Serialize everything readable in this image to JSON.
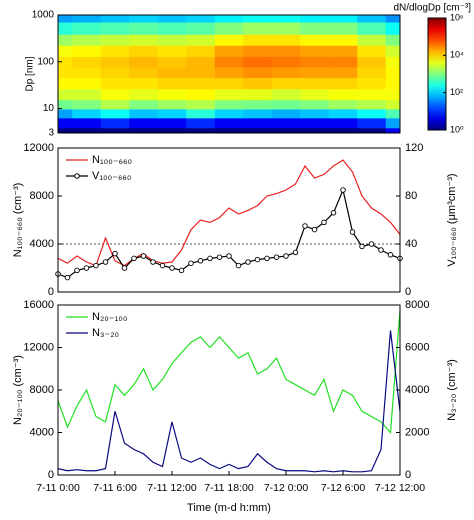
{
  "chart_data": [
    {
      "type": "heatmap",
      "x": [
        0,
        3,
        6,
        9,
        12,
        15,
        18,
        21,
        24,
        27,
        30,
        33,
        36
      ],
      "y": [
        3,
        5,
        8,
        12,
        20,
        35,
        60,
        100,
        170,
        300,
        500,
        1000
      ],
      "z": [
        [
          1,
          1,
          1,
          1,
          1,
          1,
          1,
          1,
          1,
          1,
          1,
          1,
          5
        ],
        [
          5,
          5,
          10,
          5,
          5,
          10,
          5,
          5,
          5,
          5,
          5,
          10,
          50
        ],
        [
          50,
          100,
          200,
          80,
          100,
          300,
          100,
          80,
          60,
          80,
          100,
          200,
          500
        ],
        [
          800,
          1000,
          2000,
          1000,
          1500,
          2000,
          1000,
          900,
          800,
          1000,
          1500,
          2000,
          3000
        ],
        [
          3000,
          3000,
          5000,
          4000,
          5000,
          6000,
          4000,
          4000,
          3000,
          4000,
          5000,
          5000,
          5000
        ],
        [
          6000,
          6000,
          8000,
          8000,
          10000,
          10000,
          10000,
          12000,
          10000,
          10000,
          10000,
          8000,
          6000
        ],
        [
          8000,
          8000,
          10000,
          12000,
          15000,
          15000,
          20000,
          25000,
          22000,
          20000,
          20000,
          10000,
          6000
        ],
        [
          8000,
          10000,
          12000,
          15000,
          12000,
          15000,
          30000,
          40000,
          35000,
          30000,
          30000,
          12000,
          5000
        ],
        [
          5000,
          6000,
          8000,
          10000,
          8000,
          10000,
          20000,
          25000,
          25000,
          20000,
          20000,
          8000,
          3000
        ],
        [
          1500,
          2000,
          2500,
          3000,
          2500,
          3000,
          6000,
          8000,
          8000,
          6000,
          6000,
          2500,
          1000
        ],
        [
          300,
          400,
          500,
          600,
          500,
          600,
          1000,
          1500,
          1500,
          1000,
          1000,
          500,
          200
        ],
        [
          50,
          60,
          80,
          100,
          80,
          100,
          150,
          200,
          200,
          150,
          150,
          80,
          40
        ]
      ],
      "xlim": [
        0,
        36
      ],
      "ylabel": "Dp [nm]",
      "ylim": [
        3,
        1000
      ],
      "yticks": [
        3,
        10,
        100,
        1000
      ],
      "ylog": true,
      "colorbar_label": "dN/dlogDp [cm⁻³]",
      "colormap": "jet",
      "clim": [
        1,
        1000000
      ],
      "cticks": [
        {
          "value": 1,
          "label": "10⁰"
        },
        {
          "value": 100,
          "label": "10²"
        },
        {
          "value": 10000,
          "label": "10⁴"
        },
        {
          "value": 1000000,
          "label": "10⁶"
        }
      ]
    },
    {
      "type": "line",
      "x": [
        0,
        1,
        2,
        3,
        4,
        5,
        6,
        7,
        8,
        9,
        10,
        11,
        12,
        13,
        14,
        15,
        16,
        17,
        18,
        19,
        20,
        21,
        22,
        23,
        24,
        25,
        26,
        27,
        28,
        29,
        30,
        31,
        32,
        33,
        34,
        35,
        36
      ],
      "xlim": [
        0,
        36
      ],
      "ylabel": "N₁₀₀₋₆₆₀ (cm⁻³)",
      "ylim": [
        0,
        12000
      ],
      "yticks": [
        0,
        4000,
        8000,
        12000
      ],
      "y2label": "V₁₀₀₋₆₆₀ (μm³cm⁻³)",
      "y2lim": [
        0,
        120
      ],
      "y2ticks": [
        0,
        40,
        80,
        120
      ],
      "hline": 4000,
      "legend": "upper left",
      "series": [
        {
          "name": "N₁₀₀₋₆₆₀",
          "color": "#e8201e",
          "values": [
            2800,
            2400,
            3000,
            2500,
            2200,
            4500,
            2600,
            2200,
            2800,
            3200,
            2600,
            2400,
            2500,
            3500,
            5200,
            6000,
            5800,
            6200,
            7000,
            6500,
            6800,
            7200,
            8000,
            8200,
            8500,
            9000,
            10500,
            9500,
            9800,
            10500,
            11000,
            10000,
            8000,
            7000,
            6500,
            5800,
            4800
          ]
        },
        {
          "name": "V₁₀₀₋₆₆₀",
          "color": "#000000",
          "axis": "y2",
          "marker": "circle",
          "values": [
            15,
            12,
            18,
            20,
            22,
            25,
            32,
            20,
            28,
            30,
            25,
            22,
            20,
            18,
            24,
            26,
            28,
            29,
            30,
            22,
            25,
            27,
            28,
            29,
            30,
            33,
            55,
            52,
            58,
            66,
            85,
            50,
            38,
            40,
            35,
            31,
            28
          ]
        }
      ]
    },
    {
      "type": "line",
      "x": [
        0,
        1,
        2,
        3,
        4,
        5,
        6,
        7,
        8,
        9,
        10,
        11,
        12,
        13,
        14,
        15,
        16,
        17,
        18,
        19,
        20,
        21,
        22,
        23,
        24,
        25,
        26,
        27,
        28,
        29,
        30,
        31,
        32,
        33,
        34,
        35,
        36
      ],
      "xlim": [
        0,
        36
      ],
      "xticks": [
        {
          "value": 0,
          "label": "7-11 0:00"
        },
        {
          "value": 6,
          "label": "7-11 6:00"
        },
        {
          "value": 12,
          "label": "7-11 12:00"
        },
        {
          "value": 18,
          "label": "7-11 18:00"
        },
        {
          "value": 24,
          "label": "7-12 0:00"
        },
        {
          "value": 30,
          "label": "7-12 6:00"
        },
        {
          "value": 36,
          "label": "7-12 12:00"
        }
      ],
      "xlabel": "Time (m-d h:mm)",
      "ylabel": "N₂₀₋₁₀₀ (cm⁻³)",
      "ylim": [
        0,
        16000
      ],
      "yticks": [
        0,
        4000,
        8000,
        12000,
        16000
      ],
      "y2label": "N₃₋₂₀ (cm⁻³)",
      "y2lim": [
        0,
        8000
      ],
      "y2ticks": [
        0,
        2000,
        4000,
        6000,
        8000
      ],
      "legend": "upper left",
      "series": [
        {
          "name": "N₂₀₋₁₀₀",
          "color": "#22e022",
          "values": [
            7000,
            4500,
            6500,
            8000,
            5500,
            5000,
            8500,
            7500,
            8500,
            10000,
            8000,
            9000,
            10500,
            11500,
            12500,
            13000,
            12000,
            13000,
            12000,
            11000,
            11500,
            9500,
            10000,
            11000,
            9000,
            8500,
            8000,
            7500,
            9000,
            6000,
            8000,
            7500,
            6000,
            5500,
            5000,
            4000,
            15500
          ]
        },
        {
          "name": "N₃₋₂₀",
          "color": "#0a0a80",
          "axis": "y2",
          "values": [
            300,
            200,
            250,
            200,
            200,
            300,
            3000,
            1500,
            1200,
            1000,
            600,
            400,
            2500,
            800,
            600,
            800,
            500,
            300,
            500,
            300,
            400,
            1000,
            600,
            300,
            200,
            200,
            200,
            150,
            200,
            150,
            200,
            150,
            150,
            200,
            1200,
            6800,
            3000
          ]
        }
      ]
    }
  ]
}
